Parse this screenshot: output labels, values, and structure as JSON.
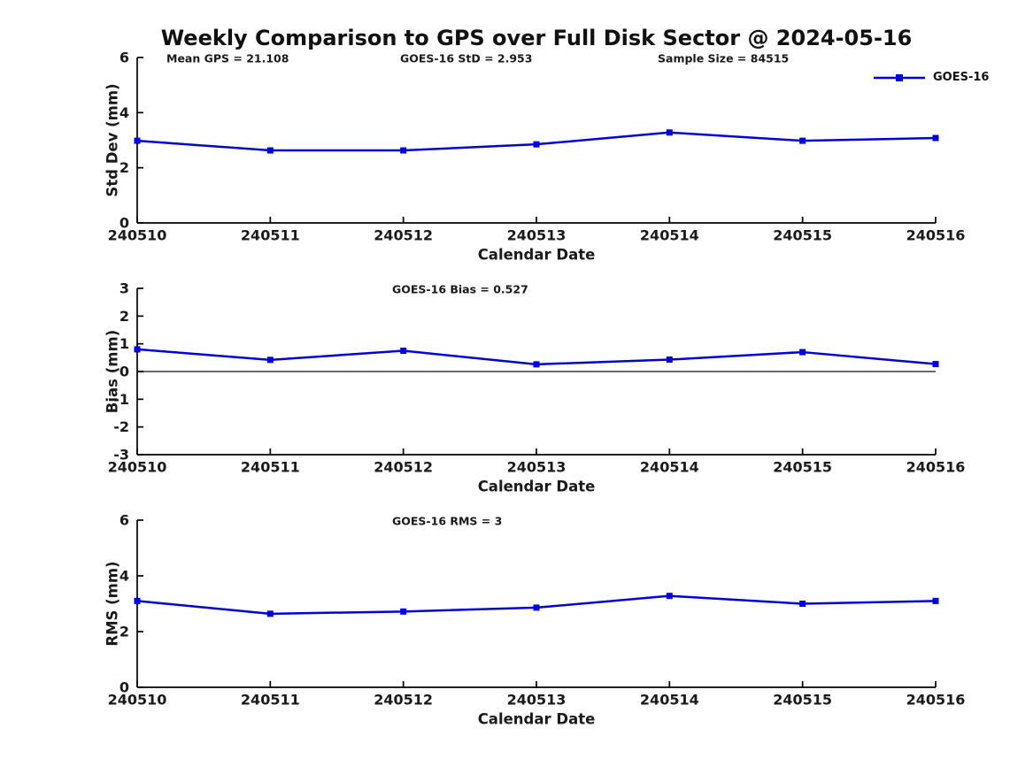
{
  "title": "Weekly Comparison to GPS over Full Disk Sector @ 2024-05-16",
  "legend": {
    "label": "GOES-16"
  },
  "colors": {
    "line": "#0000dd",
    "axis": "#000000",
    "zero_line": "#555555",
    "text": "#1a1a1a"
  },
  "chart_data": [
    {
      "type": "line",
      "id": "std-dev",
      "categories": [
        "240510",
        "240511",
        "240512",
        "240513",
        "240514",
        "240515",
        "240516"
      ],
      "series": [
        {
          "name": "GOES-16",
          "values": [
            2.98,
            2.63,
            2.63,
            2.85,
            3.28,
            2.98,
            3.08
          ]
        }
      ],
      "annotations": [
        "Mean GPS = 21.108",
        "GOES-16 StD = 2.953",
        "Sample Size = 84515"
      ],
      "xlabel": "Calendar Date",
      "ylabel": "Std Dev (mm)",
      "ylim": [
        0,
        6
      ],
      "yticks": [
        0,
        2,
        4,
        6
      ],
      "zero_line": false,
      "grid": false,
      "legend_position": "upper-right-outside"
    },
    {
      "type": "line",
      "id": "bias",
      "categories": [
        "240510",
        "240511",
        "240512",
        "240513",
        "240514",
        "240515",
        "240516"
      ],
      "series": [
        {
          "name": "GOES-16",
          "values": [
            0.8,
            0.42,
            0.75,
            0.26,
            0.43,
            0.7,
            0.27
          ]
        }
      ],
      "annotations": [
        "GOES-16 Bias  = 0.527"
      ],
      "xlabel": "Calendar Date",
      "ylabel": "Bias (mm)",
      "ylim": [
        -3,
        3
      ],
      "yticks": [
        -3,
        -2,
        -1,
        0,
        1,
        2,
        3
      ],
      "zero_line": true,
      "grid": false,
      "legend_position": "none"
    },
    {
      "type": "line",
      "id": "rms",
      "categories": [
        "240510",
        "240511",
        "240512",
        "240513",
        "240514",
        "240515",
        "240516"
      ],
      "series": [
        {
          "name": "GOES-16",
          "values": [
            3.1,
            2.64,
            2.72,
            2.86,
            3.28,
            3.0,
            3.1
          ]
        }
      ],
      "annotations": [
        "GOES-16 RMS = 3"
      ],
      "xlabel": "Calendar Date",
      "ylabel": "RMS (mm)",
      "ylim": [
        0,
        6
      ],
      "yticks": [
        0,
        2,
        4,
        6
      ],
      "zero_line": false,
      "grid": false,
      "legend_position": "none"
    }
  ]
}
